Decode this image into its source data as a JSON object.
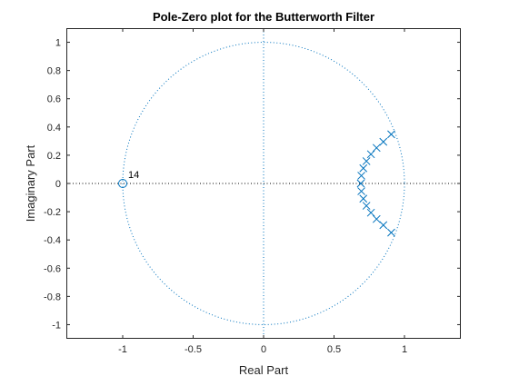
{
  "chart_data": {
    "type": "scatter",
    "title": "Pole-Zero plot for the Butterworth Filter",
    "xlabel": "Real Part",
    "ylabel": "Imaginary Part",
    "xlim": [
      -1.4,
      1.4
    ],
    "ylim": [
      -1.1,
      1.1
    ],
    "x_ticks": [
      -1,
      -0.5,
      0,
      0.5,
      1
    ],
    "x_tick_labels": [
      "-1",
      "-0.5",
      "0",
      "0.5",
      "1"
    ],
    "y_ticks": [
      -1,
      -0.8,
      -0.6,
      -0.4,
      -0.2,
      0,
      0.2,
      0.4,
      0.6,
      0.8,
      1
    ],
    "y_tick_labels": [
      "-1",
      "-0.8",
      "-0.6",
      "-0.4",
      "-0.2",
      "0",
      "0.2",
      "0.4",
      "0.6",
      "0.8",
      "1"
    ],
    "grid": false,
    "unit_circle": true,
    "colors": {
      "series": "#0072BD",
      "axes": "#262626",
      "reference": "#000000"
    },
    "series": [
      {
        "marker": "x",
        "points": [
          {
            "x": 0.906,
            "y": 0.348
          },
          {
            "x": 0.85,
            "y": 0.295
          },
          {
            "x": 0.802,
            "y": 0.252
          },
          {
            "x": 0.762,
            "y": 0.207
          },
          {
            "x": 0.73,
            "y": 0.158
          },
          {
            "x": 0.708,
            "y": 0.108
          },
          {
            "x": 0.694,
            "y": 0.055
          },
          {
            "x": 0.69,
            "y": 0.0
          },
          {
            "x": 0.694,
            "y": -0.055
          },
          {
            "x": 0.708,
            "y": -0.108
          },
          {
            "x": 0.73,
            "y": -0.158
          },
          {
            "x": 0.762,
            "y": -0.207
          },
          {
            "x": 0.802,
            "y": -0.252
          },
          {
            "x": 0.85,
            "y": -0.295
          },
          {
            "x": 0.906,
            "y": -0.348
          }
        ]
      },
      {
        "marker": "o",
        "points": [
          {
            "x": -1,
            "y": 0
          }
        ]
      }
    ],
    "annotations": [
      {
        "text": "14",
        "x": -1,
        "y": 0
      }
    ]
  }
}
